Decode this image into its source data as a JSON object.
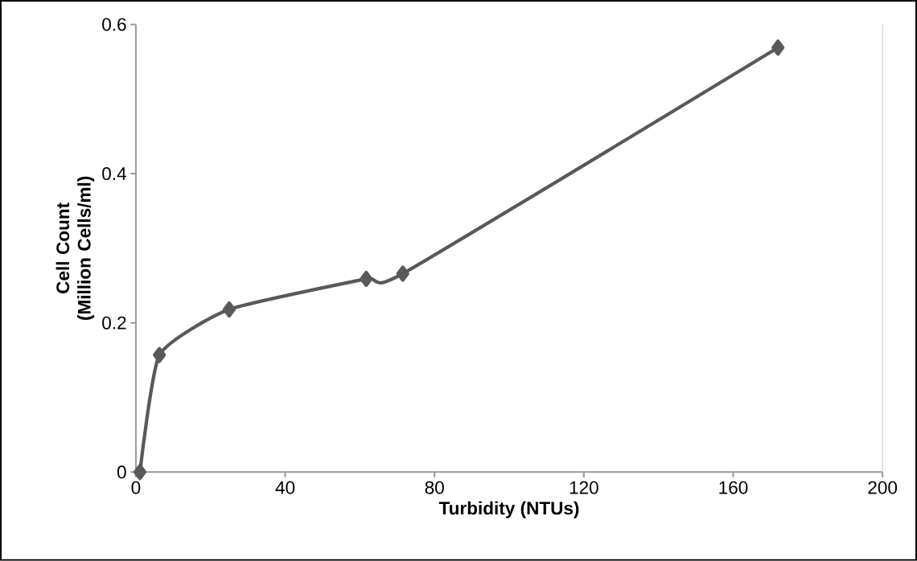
{
  "chart_data": {
    "type": "line",
    "xlabel": "Turbidity (NTUs)",
    "ylabel": "Cell Count (Million Cells/ml)",
    "x": [
      1.1,
      6.3,
      25,
      61.7,
      71.5,
      172
    ],
    "series": [
      {
        "color": "#595959",
        "values": [
          0,
          0.157,
          0.218,
          0.259,
          0.266,
          0.569
        ]
      }
    ],
    "xlim": [
      0,
      200
    ],
    "ylim": [
      0,
      0.6
    ],
    "xticks": [
      0,
      40,
      80,
      120,
      160,
      200
    ],
    "yticks": [
      0,
      0.2,
      0.4,
      0.6
    ],
    "marker": "diamond",
    "line_style": "solid"
  }
}
